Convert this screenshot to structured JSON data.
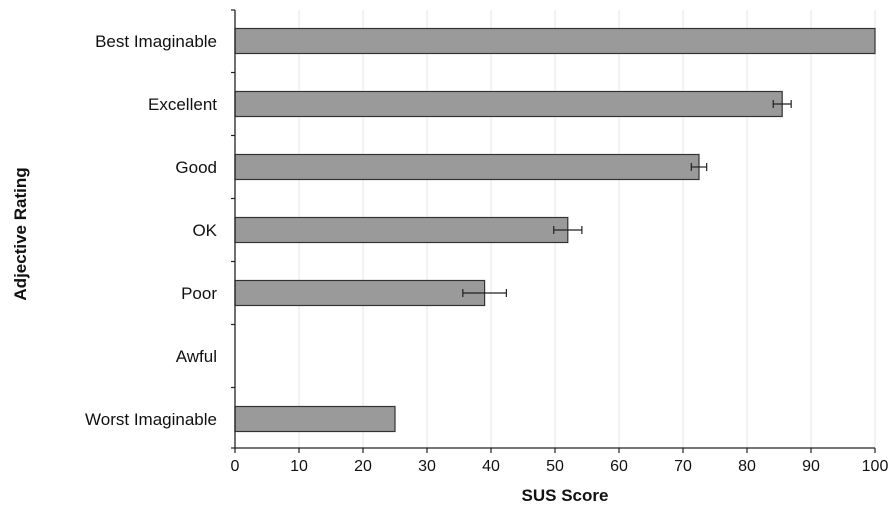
{
  "chart_data": {
    "type": "bar",
    "orientation": "horizontal",
    "categories": [
      "Best Imaginable",
      "Excellent",
      "Good",
      "OK",
      "Poor",
      "Awful",
      "Worst Imaginable"
    ],
    "values": [
      100,
      85.5,
      72.5,
      52,
      39,
      null,
      25
    ],
    "error_bars": [
      null,
      1.4,
      1.2,
      2.2,
      3.4,
      null,
      null
    ],
    "xlabel": "SUS Score",
    "ylabel": "Adjective Rating",
    "xlim": [
      0,
      100
    ],
    "xticks": [
      "0",
      "10",
      "20",
      "30",
      "40",
      "50",
      "60",
      "70",
      "80",
      "90",
      "100"
    ],
    "grid": "vertical",
    "colors": {
      "bar_fill": "#9a9a9a",
      "bar_stroke": "#333333",
      "grid": "#e4e4e4",
      "axis": "#222222"
    }
  }
}
